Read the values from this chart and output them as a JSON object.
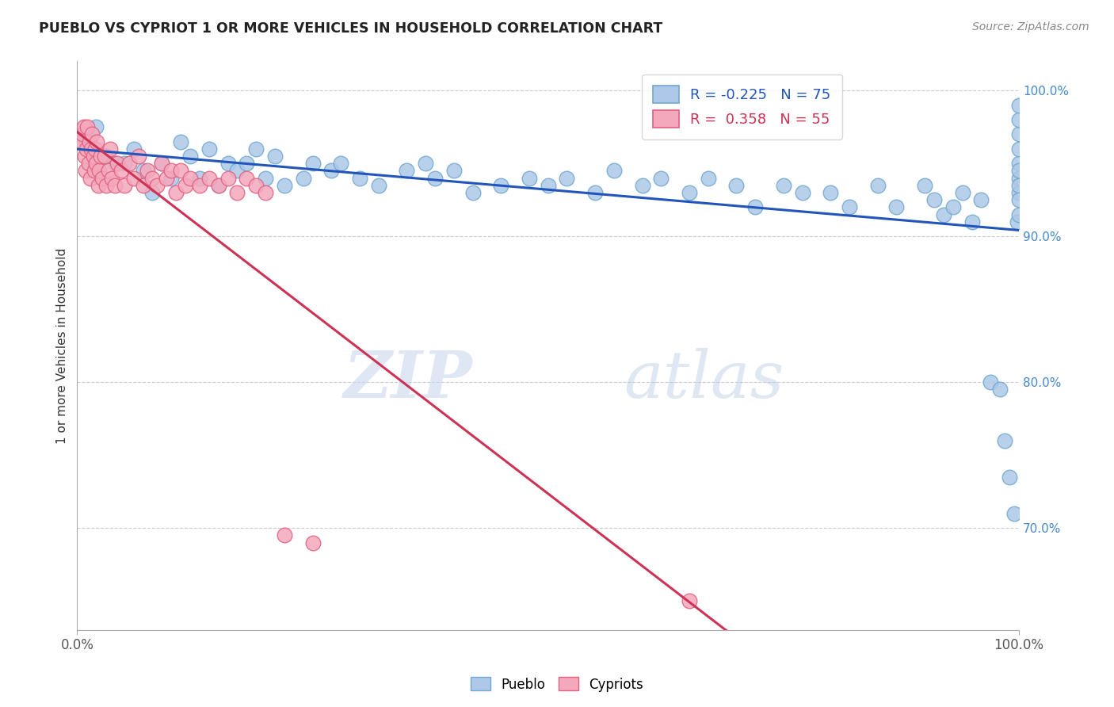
{
  "title": "PUEBLO VS CYPRIOT 1 OR MORE VEHICLES IN HOUSEHOLD CORRELATION CHART",
  "source": "Source: ZipAtlas.com",
  "ylabel": "1 or more Vehicles in Household",
  "legend_blue_label": "R = -0.225   N = 75",
  "legend_pink_label": "R =  0.358   N = 55",
  "pueblo_color": "#adc8e8",
  "pueblo_edge": "#6fa8d0",
  "cypriot_color": "#f4a8bc",
  "cypriot_edge": "#e06080",
  "pueblo_line_color": "#2255bb",
  "cypriot_line_color": "#cc3355",
  "watermark_zip": "ZIP",
  "watermark_atlas": "atlas",
  "right_yticks": [
    70.0,
    80.0,
    90.0,
    100.0
  ],
  "pueblo_scatter_x": [
    1.0,
    2.0,
    3.0,
    4.0,
    5.0,
    6.0,
    7.0,
    8.0,
    9.0,
    10.0,
    11.0,
    12.0,
    13.0,
    14.0,
    15.0,
    16.0,
    17.0,
    18.0,
    19.0,
    20.0,
    21.0,
    22.0,
    24.0,
    25.0,
    27.0,
    28.0,
    30.0,
    32.0,
    35.0,
    37.0,
    38.0,
    40.0,
    42.0,
    45.0,
    48.0,
    50.0,
    52.0,
    55.0,
    57.0,
    60.0,
    62.0,
    65.0,
    67.0,
    70.0,
    72.0,
    75.0,
    77.0,
    80.0,
    82.0,
    85.0,
    87.0,
    90.0,
    91.0,
    92.0,
    93.0,
    94.0,
    95.0,
    96.0,
    97.0,
    98.0,
    98.5,
    99.0,
    99.5,
    99.8,
    100.0,
    100.0,
    100.0,
    100.0,
    100.0,
    100.0,
    100.0,
    100.0,
    100.0,
    100.0,
    100.0
  ],
  "pueblo_scatter_y": [
    96.5,
    97.5,
    95.5,
    95.0,
    95.0,
    96.0,
    94.5,
    93.0,
    95.0,
    94.0,
    96.5,
    95.5,
    94.0,
    96.0,
    93.5,
    95.0,
    94.5,
    95.0,
    96.0,
    94.0,
    95.5,
    93.5,
    94.0,
    95.0,
    94.5,
    95.0,
    94.0,
    93.5,
    94.5,
    95.0,
    94.0,
    94.5,
    93.0,
    93.5,
    94.0,
    93.5,
    94.0,
    93.0,
    94.5,
    93.5,
    94.0,
    93.0,
    94.0,
    93.5,
    92.0,
    93.5,
    93.0,
    93.0,
    92.0,
    93.5,
    92.0,
    93.5,
    92.5,
    91.5,
    92.0,
    93.0,
    91.0,
    92.5,
    80.0,
    79.5,
    76.0,
    73.5,
    71.0,
    91.0,
    93.0,
    94.0,
    95.0,
    96.0,
    97.0,
    98.0,
    99.0,
    93.5,
    94.5,
    92.5,
    91.5
  ],
  "cypriot_scatter_x": [
    0.5,
    0.6,
    0.7,
    0.8,
    0.9,
    1.0,
    1.1,
    1.2,
    1.3,
    1.4,
    1.5,
    1.6,
    1.7,
    1.8,
    1.9,
    2.0,
    2.1,
    2.2,
    2.3,
    2.5,
    2.7,
    2.9,
    3.1,
    3.3,
    3.5,
    3.7,
    4.0,
    4.3,
    4.7,
    5.0,
    5.5,
    6.0,
    6.5,
    7.0,
    7.5,
    8.0,
    8.5,
    9.0,
    9.5,
    10.0,
    10.5,
    11.0,
    11.5,
    12.0,
    13.0,
    14.0,
    15.0,
    16.0,
    17.0,
    18.0,
    19.0,
    20.0,
    22.0,
    25.0,
    65.0
  ],
  "cypriot_scatter_y": [
    96.5,
    97.0,
    97.5,
    95.5,
    94.5,
    96.0,
    97.5,
    95.0,
    96.5,
    94.0,
    96.0,
    97.0,
    95.5,
    94.5,
    96.0,
    95.0,
    96.5,
    93.5,
    94.5,
    95.5,
    94.0,
    95.5,
    93.5,
    94.5,
    96.0,
    94.0,
    93.5,
    95.0,
    94.5,
    93.5,
    95.0,
    94.0,
    95.5,
    93.5,
    94.5,
    94.0,
    93.5,
    95.0,
    94.0,
    94.5,
    93.0,
    94.5,
    93.5,
    94.0,
    93.5,
    94.0,
    93.5,
    94.0,
    93.0,
    94.0,
    93.5,
    93.0,
    69.5,
    69.0,
    65.0
  ]
}
